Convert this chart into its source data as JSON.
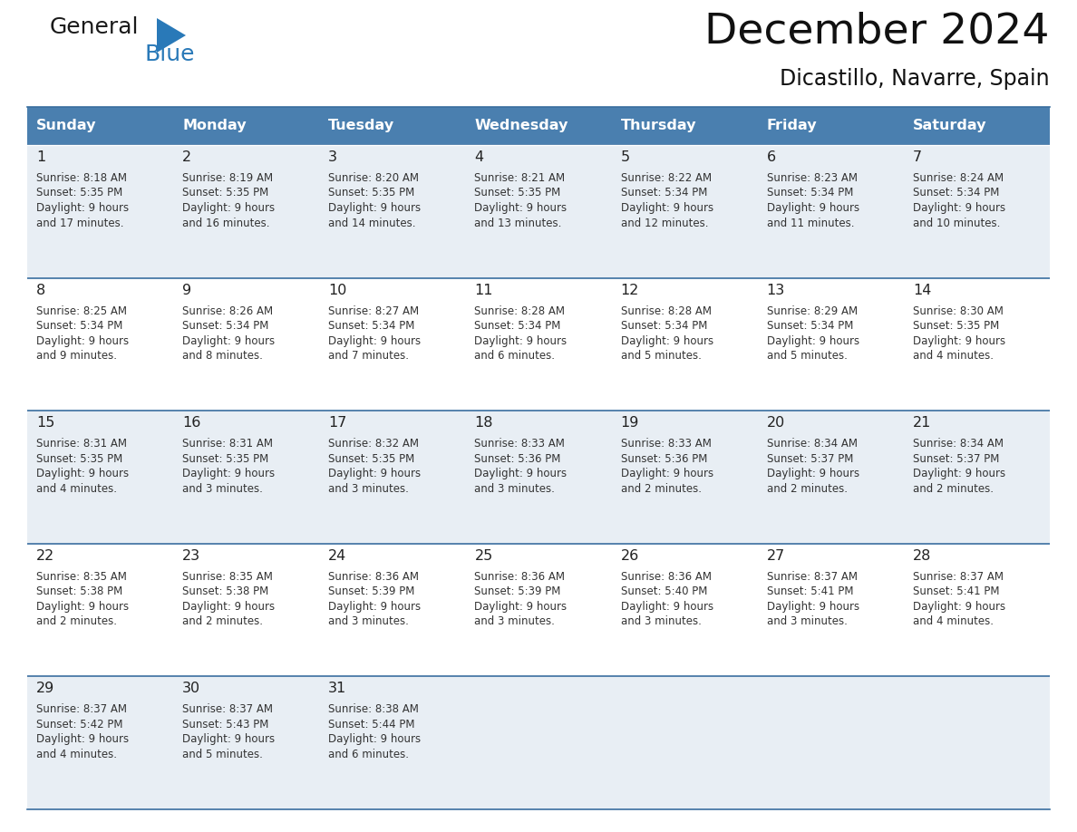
{
  "title": "December 2024",
  "subtitle": "Dicastillo, Navarre, Spain",
  "days_of_week": [
    "Sunday",
    "Monday",
    "Tuesday",
    "Wednesday",
    "Thursday",
    "Friday",
    "Saturday"
  ],
  "header_bg": "#4a7faf",
  "header_text": "#ffffff",
  "bg_color": "#ffffff",
  "row_bg_light": "#e8eef4",
  "row_bg_white": "#ffffff",
  "border_color": "#3a6e9f",
  "day_num_color": "#222222",
  "text_color": "#333333",
  "logo_general_color": "#1a1a1a",
  "logo_blue_color": "#2979b8",
  "weeks": [
    [
      {
        "day": 1,
        "sunrise": "8:18 AM",
        "sunset": "5:35 PM",
        "daylight": "9 hours and 17 minutes."
      },
      {
        "day": 2,
        "sunrise": "8:19 AM",
        "sunset": "5:35 PM",
        "daylight": "9 hours and 16 minutes."
      },
      {
        "day": 3,
        "sunrise": "8:20 AM",
        "sunset": "5:35 PM",
        "daylight": "9 hours and 14 minutes."
      },
      {
        "day": 4,
        "sunrise": "8:21 AM",
        "sunset": "5:35 PM",
        "daylight": "9 hours and 13 minutes."
      },
      {
        "day": 5,
        "sunrise": "8:22 AM",
        "sunset": "5:34 PM",
        "daylight": "9 hours and 12 minutes."
      },
      {
        "day": 6,
        "sunrise": "8:23 AM",
        "sunset": "5:34 PM",
        "daylight": "9 hours and 11 minutes."
      },
      {
        "day": 7,
        "sunrise": "8:24 AM",
        "sunset": "5:34 PM",
        "daylight": "9 hours and 10 minutes."
      }
    ],
    [
      {
        "day": 8,
        "sunrise": "8:25 AM",
        "sunset": "5:34 PM",
        "daylight": "9 hours and 9 minutes."
      },
      {
        "day": 9,
        "sunrise": "8:26 AM",
        "sunset": "5:34 PM",
        "daylight": "9 hours and 8 minutes."
      },
      {
        "day": 10,
        "sunrise": "8:27 AM",
        "sunset": "5:34 PM",
        "daylight": "9 hours and 7 minutes."
      },
      {
        "day": 11,
        "sunrise": "8:28 AM",
        "sunset": "5:34 PM",
        "daylight": "9 hours and 6 minutes."
      },
      {
        "day": 12,
        "sunrise": "8:28 AM",
        "sunset": "5:34 PM",
        "daylight": "9 hours and 5 minutes."
      },
      {
        "day": 13,
        "sunrise": "8:29 AM",
        "sunset": "5:34 PM",
        "daylight": "9 hours and 5 minutes."
      },
      {
        "day": 14,
        "sunrise": "8:30 AM",
        "sunset": "5:35 PM",
        "daylight": "9 hours and 4 minutes."
      }
    ],
    [
      {
        "day": 15,
        "sunrise": "8:31 AM",
        "sunset": "5:35 PM",
        "daylight": "9 hours and 4 minutes."
      },
      {
        "day": 16,
        "sunrise": "8:31 AM",
        "sunset": "5:35 PM",
        "daylight": "9 hours and 3 minutes."
      },
      {
        "day": 17,
        "sunrise": "8:32 AM",
        "sunset": "5:35 PM",
        "daylight": "9 hours and 3 minutes."
      },
      {
        "day": 18,
        "sunrise": "8:33 AM",
        "sunset": "5:36 PM",
        "daylight": "9 hours and 3 minutes."
      },
      {
        "day": 19,
        "sunrise": "8:33 AM",
        "sunset": "5:36 PM",
        "daylight": "9 hours and 2 minutes."
      },
      {
        "day": 20,
        "sunrise": "8:34 AM",
        "sunset": "5:37 PM",
        "daylight": "9 hours and 2 minutes."
      },
      {
        "day": 21,
        "sunrise": "8:34 AM",
        "sunset": "5:37 PM",
        "daylight": "9 hours and 2 minutes."
      }
    ],
    [
      {
        "day": 22,
        "sunrise": "8:35 AM",
        "sunset": "5:38 PM",
        "daylight": "9 hours and 2 minutes."
      },
      {
        "day": 23,
        "sunrise": "8:35 AM",
        "sunset": "5:38 PM",
        "daylight": "9 hours and 2 minutes."
      },
      {
        "day": 24,
        "sunrise": "8:36 AM",
        "sunset": "5:39 PM",
        "daylight": "9 hours and 3 minutes."
      },
      {
        "day": 25,
        "sunrise": "8:36 AM",
        "sunset": "5:39 PM",
        "daylight": "9 hours and 3 minutes."
      },
      {
        "day": 26,
        "sunrise": "8:36 AM",
        "sunset": "5:40 PM",
        "daylight": "9 hours and 3 minutes."
      },
      {
        "day": 27,
        "sunrise": "8:37 AM",
        "sunset": "5:41 PM",
        "daylight": "9 hours and 3 minutes."
      },
      {
        "day": 28,
        "sunrise": "8:37 AM",
        "sunset": "5:41 PM",
        "daylight": "9 hours and 4 minutes."
      }
    ],
    [
      {
        "day": 29,
        "sunrise": "8:37 AM",
        "sunset": "5:42 PM",
        "daylight": "9 hours and 4 minutes."
      },
      {
        "day": 30,
        "sunrise": "8:37 AM",
        "sunset": "5:43 PM",
        "daylight": "9 hours and 5 minutes."
      },
      {
        "day": 31,
        "sunrise": "8:38 AM",
        "sunset": "5:44 PM",
        "daylight": "9 hours and 6 minutes."
      },
      null,
      null,
      null,
      null
    ]
  ]
}
